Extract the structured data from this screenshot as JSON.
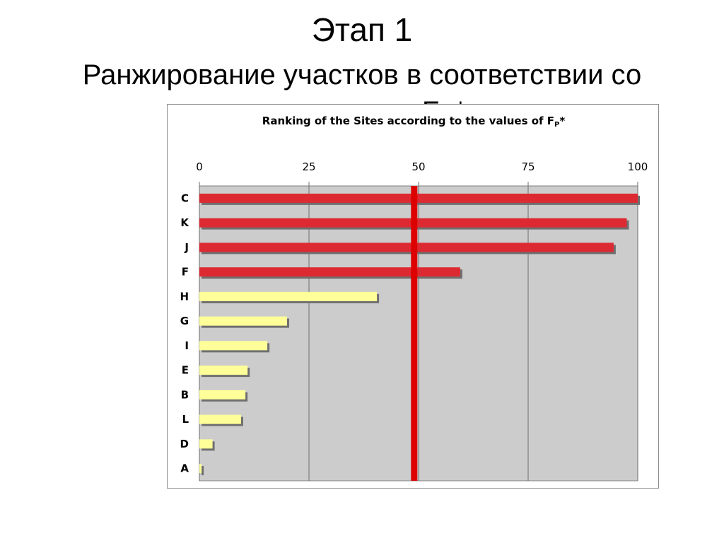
{
  "slide": {
    "title": "Этап 1",
    "subtitle_line1": "Ранжирование участков в соответствии со",
    "subtitle_line2": "значениями Fp*"
  },
  "chart_data": {
    "type": "bar",
    "orientation": "horizontal",
    "title_prefix": "Ranking of the Sites according to the values of F",
    "title_subscript": "P",
    "title_suffix": "*",
    "categories": [
      "C",
      "K",
      "J",
      "F",
      "H",
      "G",
      "I",
      "E",
      "B",
      "L",
      "D",
      "A"
    ],
    "values": [
      100,
      97.5,
      94.5,
      59.5,
      40.5,
      20,
      15.5,
      11,
      10.5,
      9.5,
      3,
      0.5
    ],
    "bar_colors": [
      "#dd2a32",
      "#dd2a32",
      "#dd2a32",
      "#dd2a32",
      "#ffff99",
      "#ffff99",
      "#ffff99",
      "#ffff99",
      "#ffff99",
      "#ffff99",
      "#ffff99",
      "#ffff99"
    ],
    "xlim": [
      0,
      100
    ],
    "xticks": [
      0,
      25,
      50,
      75,
      100
    ],
    "xaxis_position": "top",
    "grid": true,
    "plot_background": "#cccccc",
    "threshold_line": {
      "value": 49,
      "color": "#dd0000"
    }
  }
}
